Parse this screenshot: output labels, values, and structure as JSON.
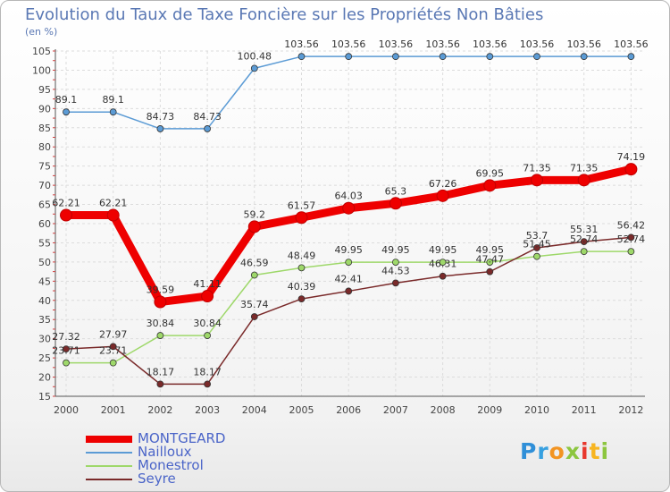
{
  "title": "Evolution du Taux de Taxe Foncière sur les Propriétés Non Bâties",
  "unit_label": "(en %)",
  "logo_text": "Proxiti",
  "chart_data": {
    "type": "line",
    "title": "Evolution du Taux de Taxe Foncière sur les Propriétés Non Bâties",
    "ylabel": "(en %)",
    "xlabel": "",
    "ylim": [
      15,
      105
    ],
    "yticks": [
      15,
      20,
      25,
      30,
      35,
      40,
      45,
      50,
      55,
      60,
      65,
      70,
      75,
      80,
      85,
      90,
      95,
      100,
      105
    ],
    "categories": [
      "2000",
      "2001",
      "2002",
      "2003",
      "2004",
      "2005",
      "2006",
      "2007",
      "2008",
      "2009",
      "2010",
      "2011",
      "2012"
    ],
    "series": [
      {
        "name": "MONTGEARD",
        "color": "#ee0000",
        "width": "thick",
        "values": [
          62.21,
          62.21,
          39.59,
          41.11,
          59.2,
          61.57,
          64.03,
          65.3,
          67.26,
          69.95,
          71.35,
          71.35,
          74.19
        ],
        "labels": [
          "62.21",
          "62.21",
          "39.59",
          "41.11",
          "59.2",
          "61.57",
          "64.03",
          "65.3",
          "67.26",
          "69.95",
          "71.35",
          "71.35",
          "74.19"
        ]
      },
      {
        "name": "Nailloux",
        "color": "#5b9bd5",
        "width": "thin",
        "values": [
          89.1,
          89.1,
          84.73,
          84.73,
          100.48,
          103.56,
          103.56,
          103.56,
          103.56,
          103.56,
          103.56,
          103.56,
          103.56
        ],
        "labels": [
          "89.1",
          "89.1",
          "84.73",
          "84.73",
          "100.48",
          "103.56",
          "103.56",
          "103.56",
          "103.56",
          "103.56",
          "103.56",
          "103.56",
          "103.56"
        ]
      },
      {
        "name": "Monestrol",
        "color": "#9ed86a",
        "width": "thin",
        "values": [
          23.71,
          23.71,
          30.84,
          30.84,
          46.59,
          48.49,
          49.95,
          49.95,
          49.95,
          49.95,
          51.45,
          52.74,
          52.74
        ],
        "labels": [
          "23.71",
          "23.71",
          "30.84",
          "30.84",
          "46.59",
          "48.49",
          "49.95",
          "49.95",
          "49.95",
          "49.95",
          "51.45",
          "52.74",
          "52.74"
        ]
      },
      {
        "name": "Seyre",
        "color": "#7a2a2a",
        "width": "thin",
        "values": [
          27.32,
          27.97,
          18.17,
          18.17,
          35.74,
          40.39,
          42.41,
          44.53,
          46.31,
          47.47,
          53.7,
          55.31,
          56.42
        ],
        "labels": [
          "27.32",
          "27.97",
          "18.17",
          "18.17",
          "35.74",
          "40.39",
          "42.41",
          "44.53",
          "46.31",
          "47.47",
          "53.7",
          "55.31",
          "56.42"
        ]
      }
    ],
    "legend_position": "bottom-left"
  }
}
